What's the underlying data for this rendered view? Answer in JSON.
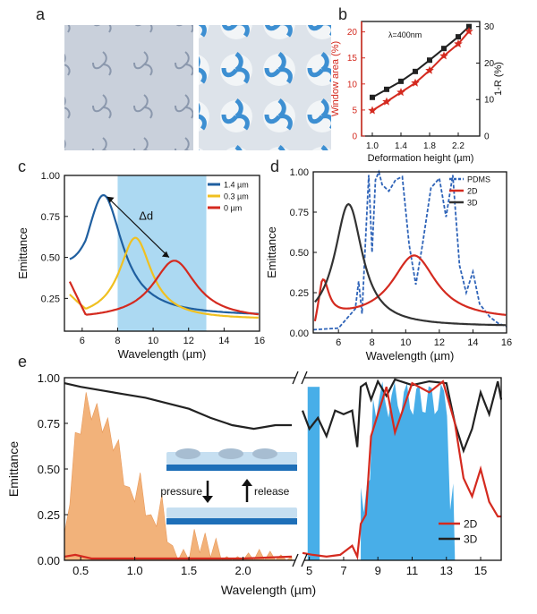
{
  "panel_letters": [
    "a",
    "b",
    "c",
    "d",
    "e"
  ],
  "chart_data": [
    {
      "panel": "a",
      "type": "image",
      "description_free": true
    },
    {
      "panel": "b",
      "type": "line",
      "xlabel": "Deformation height (µm)",
      "ylabel_left": "Window area (%)",
      "ylabel_right": "1-R (%)",
      "annotation": "λ=400nm",
      "xlim": [
        0.85,
        2.5
      ],
      "ylim_left": [
        0,
        22
      ],
      "ylim_right": [
        0,
        31.4
      ],
      "xticks": [
        "1.0",
        "1.4",
        "1.8",
        "2.2"
      ],
      "yticks_left": [
        "0",
        "5",
        "10",
        "15",
        "20"
      ],
      "yticks_right": [
        "0",
        "10",
        "20",
        "30"
      ],
      "series": [
        {
          "axis": "right",
          "color": "#222222",
          "marker": "square",
          "x": [
            1.0,
            1.2,
            1.4,
            1.6,
            1.8,
            2.0,
            2.2,
            2.35
          ],
          "y": [
            10.6,
            12.8,
            15.0,
            17.7,
            20.8,
            24.0,
            27.2,
            30.0
          ]
        },
        {
          "axis": "left",
          "color": "#d42a1f",
          "marker": "star",
          "x": [
            1.0,
            1.2,
            1.4,
            1.6,
            1.8,
            2.0,
            2.2,
            2.35
          ],
          "y": [
            4.9,
            6.6,
            8.4,
            10.2,
            12.6,
            15.4,
            17.7,
            20.1
          ]
        }
      ]
    },
    {
      "panel": "c",
      "type": "line",
      "xlabel": "Wavelength (µm)",
      "ylabel": "Emittance",
      "xlim": [
        5,
        16
      ],
      "ylim": [
        0.05,
        1.0
      ],
      "xticks": [
        "6",
        "8",
        "10",
        "12",
        "14",
        "16"
      ],
      "yticks": [
        "0.25",
        "0.50",
        "0.75",
        "1.00"
      ],
      "shaded_band": [
        8,
        13
      ],
      "annotation": "Δd",
      "legend": [
        "1.4 µm",
        "0.3 µm",
        "0 µm"
      ],
      "series": [
        {
          "name": "1.4 µm",
          "color": "#1f5fa0",
          "peak_x": 7.2,
          "peak_y": 0.88
        },
        {
          "name": "0.3 µm",
          "color": "#f0c020",
          "peak_x": 9.0,
          "peak_y": 0.62
        },
        {
          "name": "0 µm",
          "color": "#d42a1f",
          "peak_x": 11.2,
          "peak_y": 0.48
        }
      ]
    },
    {
      "panel": "d",
      "type": "line",
      "xlabel": "Wavelength (µm)",
      "ylabel": "Emittance",
      "xlim": [
        4.5,
        16
      ],
      "ylim": [
        0,
        1.0
      ],
      "xticks": [
        "6",
        "8",
        "10",
        "12",
        "14",
        "16"
      ],
      "yticks": [
        "0.00",
        "0.25",
        "0.50",
        "0.75",
        "1.00"
      ],
      "legend": [
        "PDMS",
        "2D",
        "3D"
      ],
      "series": [
        {
          "name": "PDMS",
          "color": "#2e63b8",
          "style": "dashed",
          "x": [
            4.5,
            6.0,
            7.0,
            7.2,
            7.4,
            7.6,
            7.8,
            8.0,
            8.2,
            8.4,
            8.6,
            9.0,
            9.4,
            9.8,
            10.2,
            10.6,
            11.0,
            11.5,
            12.0,
            12.4,
            12.8,
            13.2,
            13.6,
            14.0,
            14.4,
            15.0,
            15.5,
            16.0
          ],
          "y": [
            0.02,
            0.03,
            0.15,
            0.32,
            0.12,
            0.55,
            0.98,
            0.5,
            0.95,
            1.0,
            0.92,
            0.88,
            0.95,
            0.97,
            0.55,
            0.3,
            0.55,
            0.9,
            0.96,
            0.72,
            0.98,
            0.42,
            0.25,
            0.38,
            0.18,
            0.1,
            0.06,
            0.04
          ]
        },
        {
          "name": "2D",
          "color": "#d42a1f",
          "style": "solid",
          "peak_x": 10.5,
          "peak_y": 0.48
        },
        {
          "name": "3D",
          "color": "#333333",
          "style": "solid",
          "peak_x": 6.6,
          "peak_y": 0.8
        }
      ]
    },
    {
      "panel": "e",
      "type": "line",
      "xlabel": "Wavelength (µm)",
      "ylabel": "Emittance",
      "ylim": [
        0,
        1.0
      ],
      "yticks": [
        "0.00",
        "0.25",
        "0.50",
        "0.75",
        "1.00"
      ],
      "xticks_left": [
        "0.5",
        "1.0",
        "1.5",
        "2.0"
      ],
      "xticks_right": [
        "5",
        "7",
        "9",
        "11",
        "13",
        "15"
      ],
      "xlim_left": [
        0.35,
        2.5
      ],
      "xlim_right": [
        4.6,
        16.2
      ],
      "legend": [
        "2D",
        "3D"
      ],
      "inset_labels": {
        "pressure": "pressure",
        "release": "release"
      },
      "series": [
        {
          "name": "3D",
          "color": "#222222",
          "x_left": [
            0.35,
            0.5,
            0.7,
            0.9,
            1.1,
            1.3,
            1.5,
            1.7,
            1.9,
            2.1,
            2.3,
            2.45
          ],
          "y_left": [
            0.97,
            0.95,
            0.93,
            0.91,
            0.89,
            0.86,
            0.83,
            0.78,
            0.74,
            0.72,
            0.74,
            0.74
          ],
          "x_right": [
            4.6,
            5.0,
            5.5,
            6.0,
            6.5,
            7.0,
            7.5,
            7.8,
            8.0,
            8.3,
            8.6,
            9.0,
            9.5,
            10.0,
            11.0,
            12.0,
            13.0,
            13.5,
            14.0,
            14.5,
            15.0,
            15.5,
            16.0,
            16.2
          ],
          "y_right": [
            0.82,
            0.72,
            0.78,
            0.68,
            0.82,
            0.8,
            0.82,
            0.62,
            0.95,
            0.97,
            0.88,
            0.98,
            0.9,
            0.99,
            0.96,
            0.98,
            0.97,
            0.75,
            0.6,
            0.72,
            0.92,
            0.8,
            0.98,
            0.88
          ]
        },
        {
          "name": "2D",
          "color": "#d42a1f",
          "x_left": [
            0.35,
            0.45,
            0.6,
            0.8,
            1.0,
            1.5,
            2.0,
            2.45
          ],
          "y_left": [
            0.02,
            0.03,
            0.01,
            0.01,
            0.01,
            0.01,
            0.01,
            0.02
          ],
          "x_right": [
            4.6,
            5.2,
            6.0,
            6.8,
            7.5,
            7.8,
            8.0,
            8.3,
            8.6,
            9.0,
            9.5,
            10.0,
            11.0,
            12.0,
            12.8,
            13.5,
            14.0,
            14.5,
            15.0,
            15.5,
            16.0,
            16.2
          ],
          "y_right": [
            0.04,
            0.03,
            0.02,
            0.03,
            0.08,
            0.02,
            0.2,
            0.25,
            0.68,
            0.8,
            0.95,
            0.7,
            0.97,
            0.92,
            0.98,
            0.75,
            0.45,
            0.35,
            0.5,
            0.32,
            0.24,
            0.24
          ]
        }
      ],
      "solar_band": {
        "color": "#f2b27a",
        "x": [
          0.35,
          0.45,
          0.55,
          0.65,
          0.75,
          0.85,
          0.95,
          1.05,
          1.15,
          1.25,
          1.35,
          1.45,
          1.55,
          1.65,
          1.75,
          1.85,
          1.95,
          2.05,
          2.15,
          2.25,
          2.35,
          2.45
        ],
        "y": [
          0.15,
          0.7,
          0.92,
          0.86,
          0.78,
          0.66,
          0.4,
          0.48,
          0.25,
          0.36,
          0.08,
          0.06,
          0.17,
          0.15,
          0.12,
          0.02,
          0.02,
          0.04,
          0.06,
          0.05,
          0.03,
          0.02
        ]
      },
      "atm_window_band": {
        "color": "#48aee8",
        "x_range": [
          8,
          13
        ]
      }
    }
  ]
}
